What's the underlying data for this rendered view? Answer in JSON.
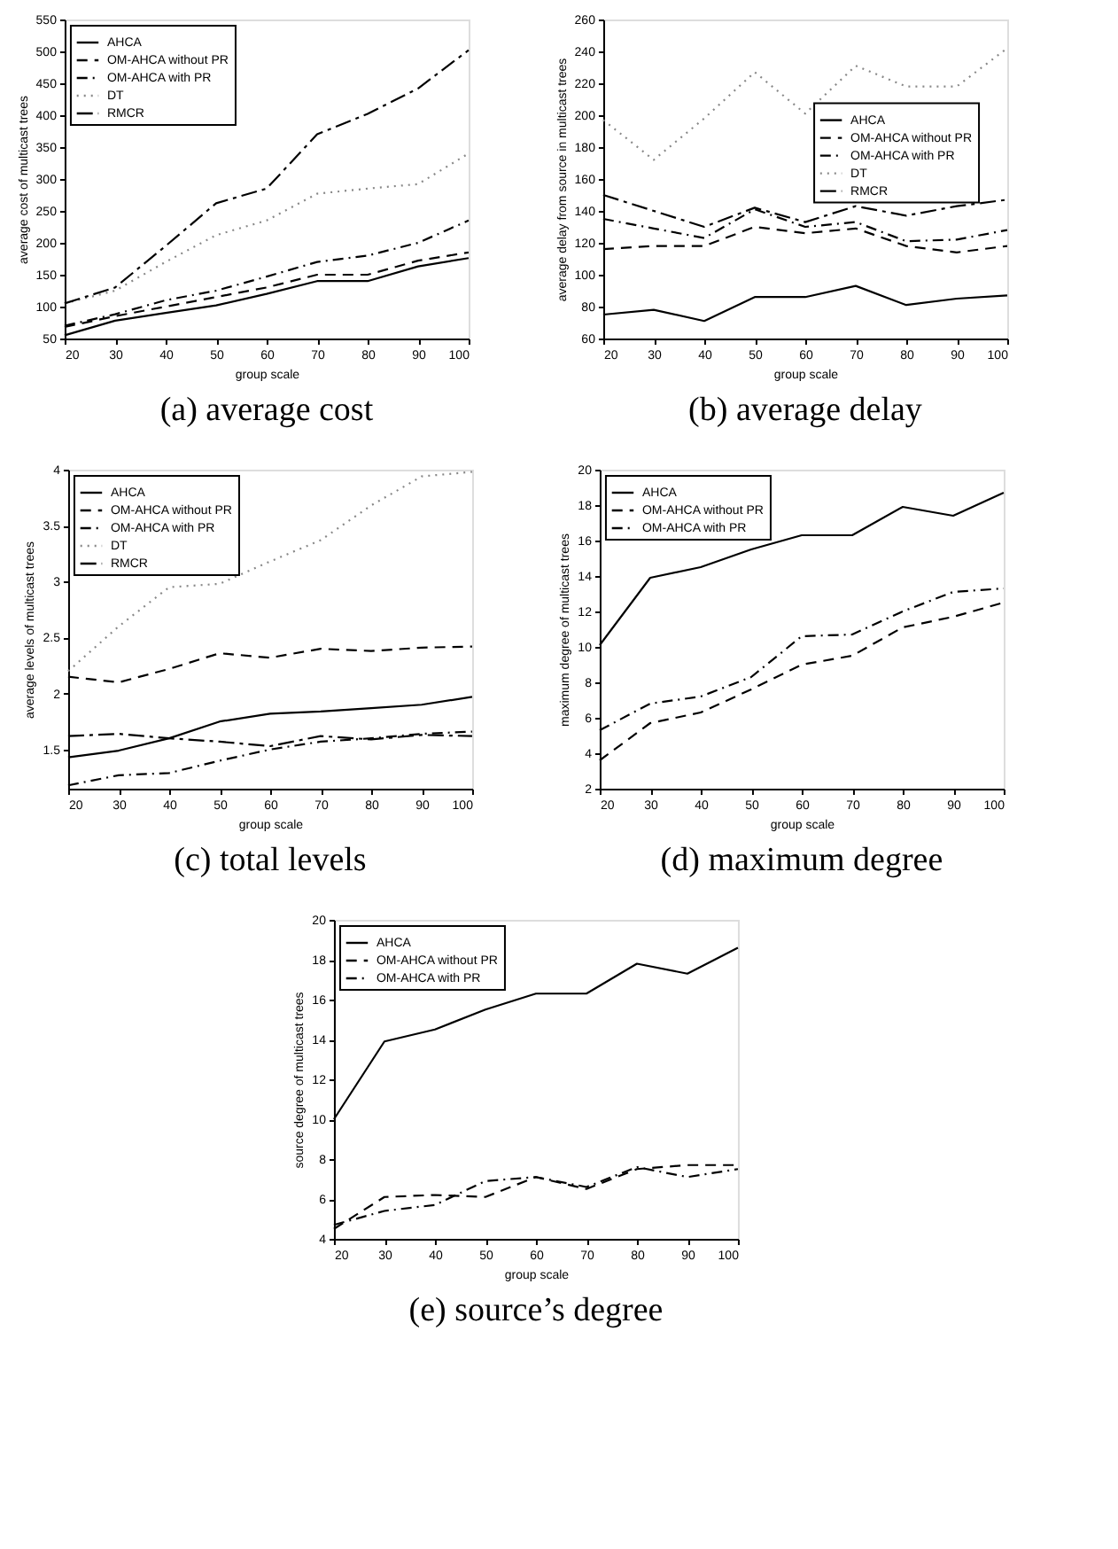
{
  "chart_data": [
    {
      "type": "line",
      "title": "(a) average cost",
      "xlabel": "group scale",
      "ylabel": "average cost of multicast trees",
      "x": [
        20,
        30,
        40,
        50,
        60,
        70,
        80,
        90,
        100
      ],
      "xlim": [
        20,
        100
      ],
      "xticks": [
        20,
        30,
        40,
        50,
        60,
        70,
        80,
        90,
        100
      ],
      "ylim": [
        50,
        550
      ],
      "yticks": [
        50,
        100,
        150,
        200,
        250,
        300,
        350,
        400,
        450,
        500,
        550
      ],
      "grid": false,
      "legend": "top left",
      "series": [
        {
          "name": "AHCA",
          "color": "#000000",
          "line_style": "solid",
          "values": [
            55,
            78,
            90,
            102,
            120,
            140,
            140,
            163,
            176
          ]
        },
        {
          "name": "OM-AHCA without PR",
          "color": "#000000",
          "line_style": "dashed",
          "values": [
            68,
            85,
            100,
            115,
            130,
            150,
            150,
            172,
            185
          ]
        },
        {
          "name": "OM-AHCA with PR",
          "color": "#000000",
          "line_style": "dashdot",
          "values": [
            70,
            88,
            110,
            125,
            147,
            170,
            180,
            200,
            235
          ]
        },
        {
          "name": "DT",
          "color": "#888888",
          "line_style": "dotted",
          "values": [
            105,
            125,
            170,
            212,
            235,
            277,
            285,
            292,
            340
          ]
        },
        {
          "name": "RMCR",
          "color": "#000000",
          "line_style": "longdashdot",
          "values": [
            105,
            130,
            195,
            262,
            285,
            370,
            402,
            442,
            502
          ]
        }
      ]
    },
    {
      "type": "line",
      "title": "(b) average delay",
      "xlabel": "group scale",
      "ylabel": "average delay from source in multicast trees",
      "x": [
        20,
        30,
        40,
        50,
        60,
        70,
        80,
        90,
        100
      ],
      "xlim": [
        20,
        100
      ],
      "xticks": [
        20,
        30,
        40,
        50,
        60,
        70,
        80,
        90,
        100
      ],
      "ylim": [
        60,
        260
      ],
      "yticks": [
        60,
        80,
        100,
        120,
        140,
        160,
        180,
        200,
        220,
        240,
        260
      ],
      "grid": false,
      "legend": "right",
      "series": [
        {
          "name": "AHCA",
          "color": "#000000",
          "line_style": "solid",
          "values": [
            75,
            78,
            71,
            86,
            86,
            93,
            81,
            85,
            87
          ]
        },
        {
          "name": "OM-AHCA without PR",
          "color": "#000000",
          "line_style": "dashed",
          "values": [
            116,
            118,
            118,
            130,
            126,
            129,
            118,
            114,
            118
          ]
        },
        {
          "name": "OM-AHCA with PR",
          "color": "#000000",
          "line_style": "dashdot",
          "values": [
            135,
            129,
            123,
            141,
            130,
            133,
            121,
            122,
            128
          ]
        },
        {
          "name": "DT",
          "color": "#888888",
          "line_style": "dotted",
          "values": [
            197,
            172,
            198,
            227,
            201,
            231,
            218,
            218,
            242
          ]
        },
        {
          "name": "RMCR",
          "color": "#000000",
          "line_style": "longdashdot",
          "values": [
            150,
            140,
            130,
            142,
            133,
            143,
            137,
            143,
            147
          ]
        }
      ]
    },
    {
      "type": "line",
      "title": "(c) total levels",
      "xlabel": "group scale",
      "ylabel": "average levels of multicast trees",
      "x": [
        20,
        30,
        40,
        50,
        60,
        70,
        80,
        90,
        100
      ],
      "xlim": [
        20,
        100
      ],
      "xticks": [
        20,
        30,
        40,
        50,
        60,
        70,
        80,
        90,
        100
      ],
      "ylim": [
        1.15,
        4
      ],
      "yticks": [
        1.5,
        2,
        2.5,
        3,
        3.5,
        4
      ],
      "grid": false,
      "legend": "top left",
      "series": [
        {
          "name": "AHCA",
          "color": "#000000",
          "line_style": "solid",
          "values": [
            1.43,
            1.49,
            1.6,
            1.75,
            1.82,
            1.84,
            1.87,
            1.9,
            1.97
          ]
        },
        {
          "name": "OM-AHCA without PR",
          "color": "#000000",
          "line_style": "dashed",
          "values": [
            2.15,
            2.1,
            2.22,
            2.36,
            2.32,
            2.4,
            2.38,
            2.41,
            2.42
          ]
        },
        {
          "name": "OM-AHCA with PR",
          "color": "#000000",
          "line_style": "dashdot",
          "values": [
            1.18,
            1.27,
            1.29,
            1.4,
            1.5,
            1.57,
            1.6,
            1.64,
            1.66
          ]
        },
        {
          "name": "DT",
          "color": "#888888",
          "line_style": "dotted",
          "values": [
            2.2,
            2.6,
            2.95,
            2.98,
            3.18,
            3.37,
            3.68,
            3.94,
            3.98
          ]
        },
        {
          "name": "RMCR",
          "color": "#000000",
          "line_style": "longdashdot",
          "values": [
            1.62,
            1.64,
            1.6,
            1.57,
            1.53,
            1.62,
            1.59,
            1.63,
            1.62
          ]
        }
      ]
    },
    {
      "type": "line",
      "title": "(d) maximum degree",
      "xlabel": "group scale",
      "ylabel": "maximum degree of multicast trees",
      "x": [
        20,
        30,
        40,
        50,
        60,
        70,
        80,
        90,
        100
      ],
      "xlim": [
        20,
        100
      ],
      "xticks": [
        20,
        30,
        40,
        50,
        60,
        70,
        80,
        90,
        100
      ],
      "ylim": [
        2,
        20
      ],
      "yticks": [
        2,
        4,
        6,
        8,
        10,
        12,
        14,
        16,
        18,
        20
      ],
      "grid": false,
      "legend": "top left",
      "series": [
        {
          "name": "AHCA",
          "color": "#000000",
          "line_style": "solid",
          "values": [
            10.1,
            13.9,
            14.5,
            15.5,
            16.3,
            16.3,
            17.9,
            17.4,
            18.7
          ]
        },
        {
          "name": "OM-AHCA without PR",
          "color": "#000000",
          "line_style": "dashed",
          "values": [
            3.6,
            5.7,
            6.3,
            7.6,
            9.0,
            9.5,
            11.1,
            11.7,
            12.5
          ]
        },
        {
          "name": "OM-AHCA with PR",
          "color": "#000000",
          "line_style": "dashdot",
          "values": [
            5.3,
            6.8,
            7.2,
            8.3,
            10.6,
            10.7,
            12.0,
            13.1,
            13.3
          ]
        }
      ]
    },
    {
      "type": "line",
      "title": "(e) source’s degree",
      "xlabel": "group scale",
      "ylabel": "source degree of multicast trees",
      "x": [
        20,
        30,
        40,
        50,
        60,
        70,
        80,
        90,
        100
      ],
      "xlim": [
        20,
        100
      ],
      "xticks": [
        20,
        30,
        40,
        50,
        60,
        70,
        80,
        90,
        100
      ],
      "ylim": [
        4,
        20
      ],
      "yticks": [
        4,
        6,
        8,
        10,
        12,
        14,
        16,
        18,
        20
      ],
      "grid": false,
      "legend": "top left",
      "series": [
        {
          "name": "AHCA",
          "color": "#000000",
          "line_style": "solid",
          "values": [
            10.0,
            13.9,
            14.5,
            15.5,
            16.3,
            16.3,
            17.8,
            17.3,
            18.6
          ]
        },
        {
          "name": "OM-AHCA without PR",
          "color": "#000000",
          "line_style": "dashed",
          "values": [
            4.5,
            6.1,
            6.2,
            6.1,
            7.1,
            6.5,
            7.5,
            7.7,
            7.7
          ]
        },
        {
          "name": "OM-AHCA with PR",
          "color": "#000000",
          "line_style": "dashdot",
          "values": [
            4.7,
            5.4,
            5.7,
            6.9,
            7.1,
            6.6,
            7.6,
            7.1,
            7.5
          ]
        }
      ]
    }
  ]
}
